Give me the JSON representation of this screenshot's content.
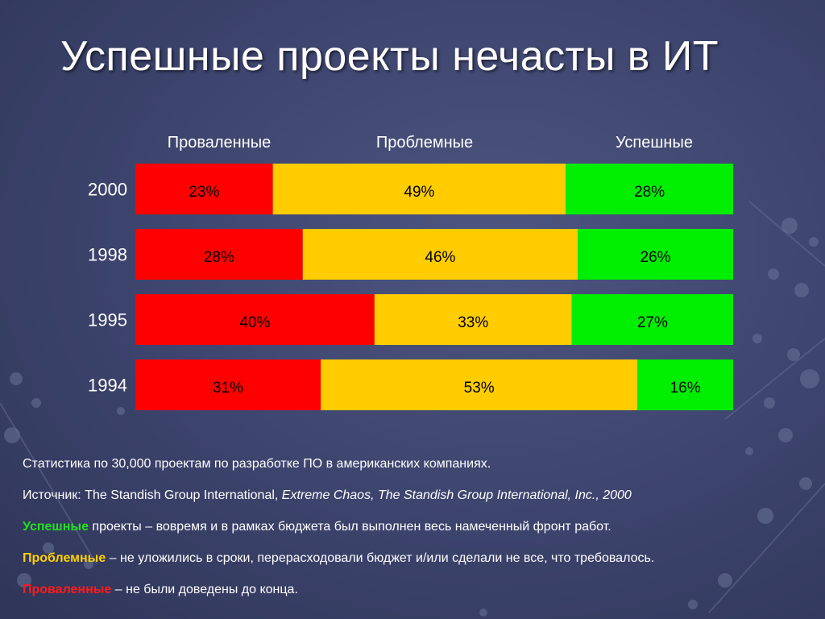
{
  "slide": {
    "title": "Успешные проекты нечасты в ИТ"
  },
  "colors": {
    "failed": "#ff0000",
    "challenged": "#ffcc00",
    "successful": "#00ee00"
  },
  "chart_data": {
    "type": "bar",
    "orientation": "horizontal",
    "stacked": true,
    "title": "",
    "xlabel": "",
    "ylabel": "",
    "xlim": [
      0,
      100
    ],
    "legend_position": "top",
    "grid": false,
    "categories": [
      "2000",
      "1998",
      "1995",
      "1994"
    ],
    "series": [
      {
        "name": "Проваленные",
        "values": [
          23,
          28,
          40,
          31
        ],
        "labels": [
          "23%",
          "28%",
          "40%",
          "31%"
        ]
      },
      {
        "name": "Проблемные",
        "values": [
          49,
          46,
          33,
          53
        ],
        "labels": [
          "49%",
          "46%",
          "33%",
          "53%"
        ]
      },
      {
        "name": "Успешные",
        "values": [
          28,
          26,
          27,
          16
        ],
        "labels": [
          "28%",
          "26%",
          "27%",
          "16%"
        ]
      }
    ]
  },
  "notes": {
    "line1": "Статистика по 30,000 проектам по разработке ПО в американских компаниях.",
    "line2_prefix": "Источник: The Standish Group International, ",
    "line2_italic": "Extreme Chaos, The Standish Group International, Inc., 2000",
    "line3_keyword": "Успешные",
    "line3_text": " проекты – вовремя и в рамках бюджета был выполнен весь намеченный фронт работ.",
    "line4_keyword": "Проблемные",
    "line4_text": "  – не уложились в сроки, перерасходовали бюджет и/или сделали не все, что требовалось.",
    "line5_keyword": "Проваленные",
    "line5_text": " – не были доведены до конца."
  }
}
